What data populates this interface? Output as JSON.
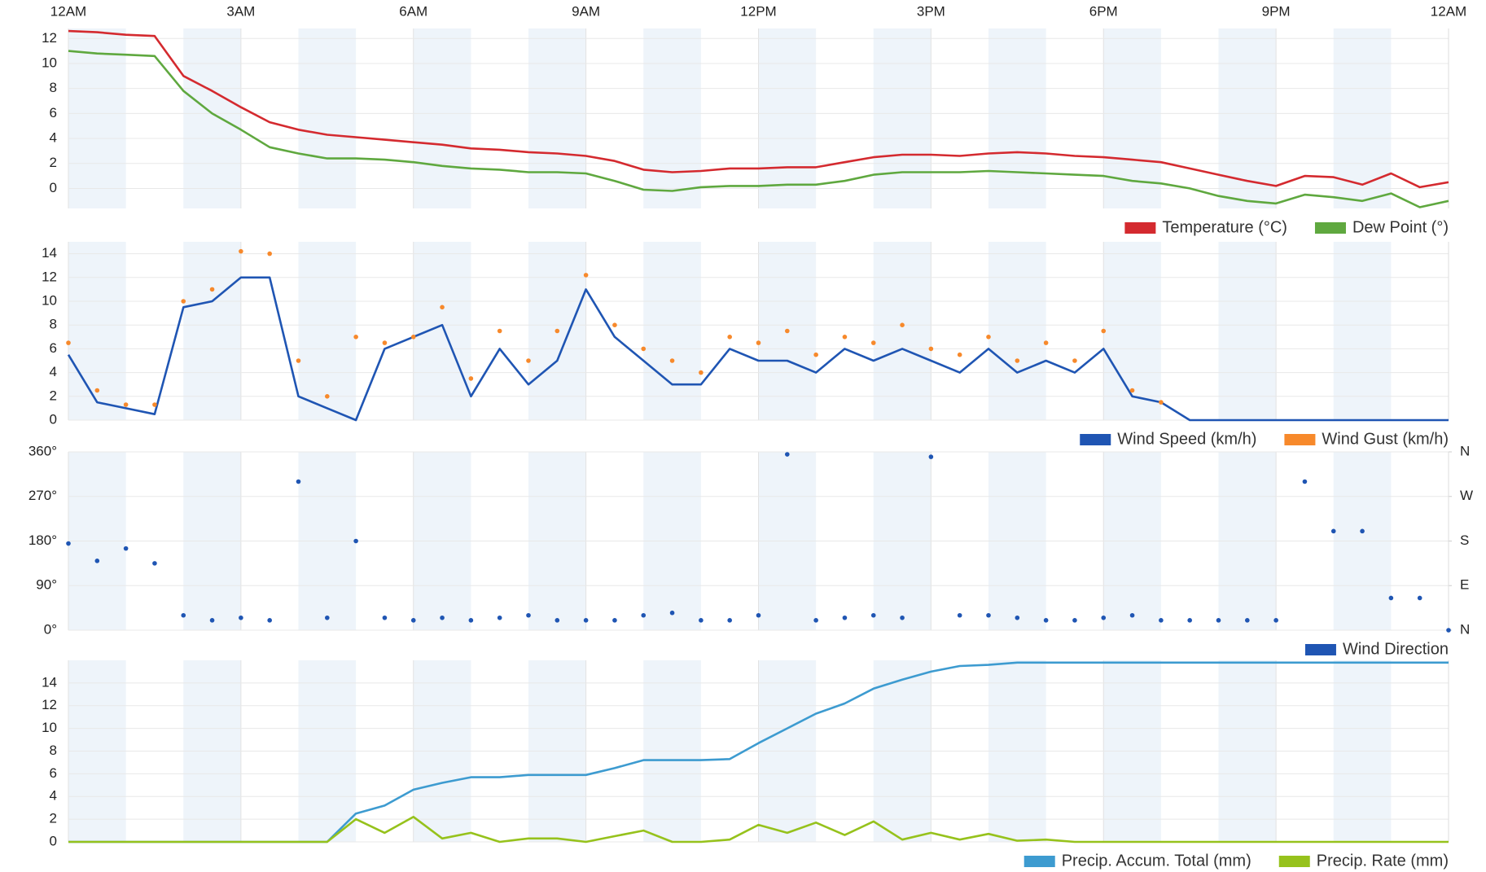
{
  "chart_data": [
    {
      "type": "line",
      "legend": "bottom-right",
      "grid": true,
      "xlim": [
        0,
        24
      ],
      "xticks": [
        {
          "value": 0,
          "label": "12AM"
        },
        {
          "value": 3,
          "label": "3AM"
        },
        {
          "value": 6,
          "label": "6AM"
        },
        {
          "value": 9,
          "label": "9AM"
        },
        {
          "value": 12,
          "label": "12PM"
        },
        {
          "value": 15,
          "label": "3PM"
        },
        {
          "value": 18,
          "label": "6PM"
        },
        {
          "value": 21,
          "label": "9PM"
        },
        {
          "value": 24,
          "label": "12AM"
        }
      ],
      "ylim": [
        -1.6,
        12.8
      ],
      "yticks": [
        0,
        2,
        4,
        6,
        8,
        10,
        12
      ],
      "x": [
        0,
        0.5,
        1,
        1.5,
        2,
        2.5,
        3,
        3.5,
        4,
        4.5,
        5,
        5.5,
        6,
        6.5,
        7,
        7.5,
        8,
        8.5,
        9,
        9.5,
        10,
        10.5,
        11,
        11.5,
        12,
        12.5,
        13,
        13.5,
        14,
        14.5,
        15,
        15.5,
        16,
        16.5,
        17,
        17.5,
        18,
        18.5,
        19,
        19.5,
        20,
        20.5,
        21,
        21.5,
        22,
        22.5,
        23,
        23.5,
        24
      ],
      "series": [
        {
          "name": "Temperature (°C)",
          "color": "#d42a2f",
          "values": [
            12.6,
            12.5,
            12.3,
            12.2,
            9.0,
            7.8,
            6.5,
            5.3,
            4.7,
            4.3,
            4.1,
            3.9,
            3.7,
            3.5,
            3.2,
            3.1,
            2.9,
            2.8,
            2.6,
            2.2,
            1.5,
            1.3,
            1.4,
            1.6,
            1.6,
            1.7,
            1.7,
            2.1,
            2.5,
            2.7,
            2.7,
            2.6,
            2.8,
            2.9,
            2.8,
            2.6,
            2.5,
            2.3,
            2.1,
            1.6,
            1.1,
            0.6,
            0.2,
            1.0,
            0.9,
            0.3,
            1.2,
            0.1,
            0.5
          ]
        },
        {
          "name": "Dew Point (°)",
          "color": "#5fa83f",
          "values": [
            11,
            10.8,
            10.7,
            10.6,
            7.8,
            6.0,
            4.7,
            3.3,
            2.8,
            2.4,
            2.4,
            2.3,
            2.1,
            1.8,
            1.6,
            1.5,
            1.3,
            1.3,
            1.2,
            0.6,
            -0.1,
            -0.2,
            0.1,
            0.2,
            0.2,
            0.3,
            0.3,
            0.6,
            1.1,
            1.3,
            1.3,
            1.3,
            1.4,
            1.3,
            1.2,
            1.1,
            1.0,
            0.6,
            0.4,
            0.0,
            -0.6,
            -1.0,
            -1.2,
            -0.5,
            -0.7,
            -1.0,
            -0.4,
            -1.5,
            -1.0
          ]
        }
      ]
    },
    {
      "type": "line",
      "legend": "bottom-right",
      "grid": true,
      "xlim": [
        0,
        24
      ],
      "xticks": [
        0,
        3,
        6,
        9,
        12,
        15,
        18,
        21,
        24
      ],
      "ylim": [
        0,
        15
      ],
      "yticks": [
        0,
        2,
        4,
        6,
        8,
        10,
        12,
        14
      ],
      "x": [
        0,
        0.5,
        1,
        1.5,
        2,
        2.5,
        3,
        3.5,
        4,
        4.5,
        5,
        5.5,
        6,
        6.5,
        7,
        7.5,
        8,
        8.5,
        9,
        9.5,
        10,
        10.5,
        11,
        11.5,
        12,
        12.5,
        13,
        13.5,
        14,
        14.5,
        15,
        15.5,
        16,
        16.5,
        17,
        17.5,
        18,
        18.5,
        19,
        19.5,
        20,
        20.5,
        21,
        21.5,
        22,
        22.5,
        23,
        23.5,
        24
      ],
      "series": [
        {
          "name": "Wind Speed (km/h)",
          "color": "#1f55b3",
          "values": [
            5.5,
            1.5,
            1.0,
            0.5,
            9.5,
            10.0,
            12.0,
            12.0,
            2.0,
            1.0,
            0,
            6,
            7,
            8,
            2,
            6,
            3,
            5,
            11,
            7,
            5,
            3,
            3,
            6,
            5,
            5,
            4,
            6,
            5,
            6,
            5,
            4,
            6,
            4,
            5,
            4,
            6,
            2,
            1.5,
            0,
            0,
            0,
            0,
            0,
            0,
            0,
            0,
            0,
            0
          ]
        },
        {
          "name": "Wind Gust (km/h)",
          "color": "#f7892b",
          "marker": true,
          "values": [
            6.5,
            2.5,
            1.3,
            1.3,
            10,
            11,
            14.2,
            14,
            5,
            2,
            7,
            6.5,
            7,
            9.5,
            3.5,
            7.5,
            5,
            7.5,
            12.2,
            8,
            6,
            5,
            4,
            7,
            6.5,
            7.5,
            5.5,
            7,
            6.5,
            8,
            6,
            5.5,
            7,
            5,
            6.5,
            5,
            7.5,
            2.5,
            1.5,
            null,
            null,
            null,
            null,
            null,
            null,
            null,
            null,
            null,
            null
          ]
        }
      ]
    },
    {
      "type": "scatter",
      "legend": "bottom-right",
      "grid": true,
      "xlim": [
        0,
        24
      ],
      "xticks": [
        0,
        3,
        6,
        9,
        12,
        15,
        18,
        21,
        24
      ],
      "ylim": [
        0,
        360
      ],
      "yticks": [
        {
          "value": 0,
          "label": "0°"
        },
        {
          "value": 90,
          "label": "90°"
        },
        {
          "value": 180,
          "label": "180°"
        },
        {
          "value": 270,
          "label": "270°"
        },
        {
          "value": 360,
          "label": "360°"
        }
      ],
      "y2lim": [
        0,
        360
      ],
      "y2ticks": [
        {
          "value": 0,
          "label": "N"
        },
        {
          "value": 90,
          "label": "E"
        },
        {
          "value": 180,
          "label": "S"
        },
        {
          "value": 270,
          "label": "W"
        },
        {
          "value": 360,
          "label": "N"
        }
      ],
      "x": [
        0,
        0.5,
        1,
        1.5,
        2,
        2.5,
        3,
        3.5,
        4,
        4.5,
        5,
        5.5,
        6,
        6.5,
        7,
        7.5,
        8,
        8.5,
        9,
        9.5,
        10,
        10.5,
        11,
        11.5,
        12,
        12.5,
        13,
        13.5,
        14,
        14.5,
        15,
        15.5,
        16,
        16.5,
        17,
        17.5,
        18,
        18.5,
        19,
        19.5,
        20,
        20.5,
        21,
        21.5,
        22,
        22.5,
        23,
        23.5,
        24
      ],
      "series": [
        {
          "name": "Wind Direction",
          "color": "#1f55b3",
          "values": [
            175,
            140,
            165,
            135,
            30,
            20,
            25,
            20,
            300,
            25,
            180,
            25,
            20,
            25,
            20,
            25,
            30,
            20,
            20,
            20,
            30,
            35,
            20,
            20,
            30,
            355,
            20,
            25,
            30,
            25,
            350,
            30,
            30,
            25,
            20,
            20,
            25,
            30,
            20,
            20,
            20,
            20,
            20,
            300,
            200,
            200,
            65,
            65,
            0
          ]
        }
      ]
    },
    {
      "type": "line",
      "legend": "bottom-right",
      "grid": true,
      "xlim": [
        0,
        24
      ],
      "xticks": [
        0,
        3,
        6,
        9,
        12,
        15,
        18,
        21,
        24
      ],
      "ylim": [
        0,
        16
      ],
      "yticks": [
        0,
        2,
        4,
        6,
        8,
        10,
        12,
        14
      ],
      "x": [
        0,
        0.5,
        1,
        1.5,
        2,
        2.5,
        3,
        3.5,
        4,
        4.5,
        5,
        5.5,
        6,
        6.5,
        7,
        7.5,
        8,
        8.5,
        9,
        9.5,
        10,
        10.5,
        11,
        11.5,
        12,
        12.5,
        13,
        13.5,
        14,
        14.5,
        15,
        15.5,
        16,
        16.5,
        17,
        17.5,
        18,
        18.5,
        19,
        19.5,
        20,
        20.5,
        21,
        21.5,
        22,
        22.5,
        23,
        23.5,
        24
      ],
      "series": [
        {
          "name": "Precip. Accum. Total (mm)",
          "color": "#3d9bd0",
          "values": [
            0,
            0,
            0,
            0,
            0,
            0,
            0,
            0,
            0,
            0,
            2.5,
            3.2,
            4.6,
            5.2,
            5.7,
            5.7,
            5.9,
            5.9,
            5.9,
            6.5,
            7.2,
            7.2,
            7.2,
            7.3,
            8.7,
            10.0,
            11.3,
            12.2,
            13.5,
            14.3,
            15.0,
            15.5,
            15.6,
            15.8,
            15.8,
            15.8,
            15.8,
            15.8,
            15.8,
            15.8,
            15.8,
            15.8,
            15.8,
            15.8,
            15.8,
            15.8,
            15.8,
            15.8,
            15.8
          ]
        },
        {
          "name": "Precip. Rate (mm)",
          "color": "#96c21c",
          "values": [
            0,
            0,
            0,
            0,
            0,
            0,
            0,
            0,
            0,
            0,
            2.0,
            0.8,
            2.2,
            0.3,
            0.8,
            0,
            0.3,
            0.3,
            0,
            0.5,
            1.0,
            0,
            0,
            0.2,
            1.5,
            0.8,
            1.7,
            0.6,
            1.8,
            0.2,
            0.8,
            0.2,
            0.7,
            0.1,
            0.2,
            0,
            0,
            0,
            0,
            0,
            0,
            0,
            0,
            0,
            0,
            0,
            0,
            0,
            0
          ]
        }
      ]
    }
  ]
}
